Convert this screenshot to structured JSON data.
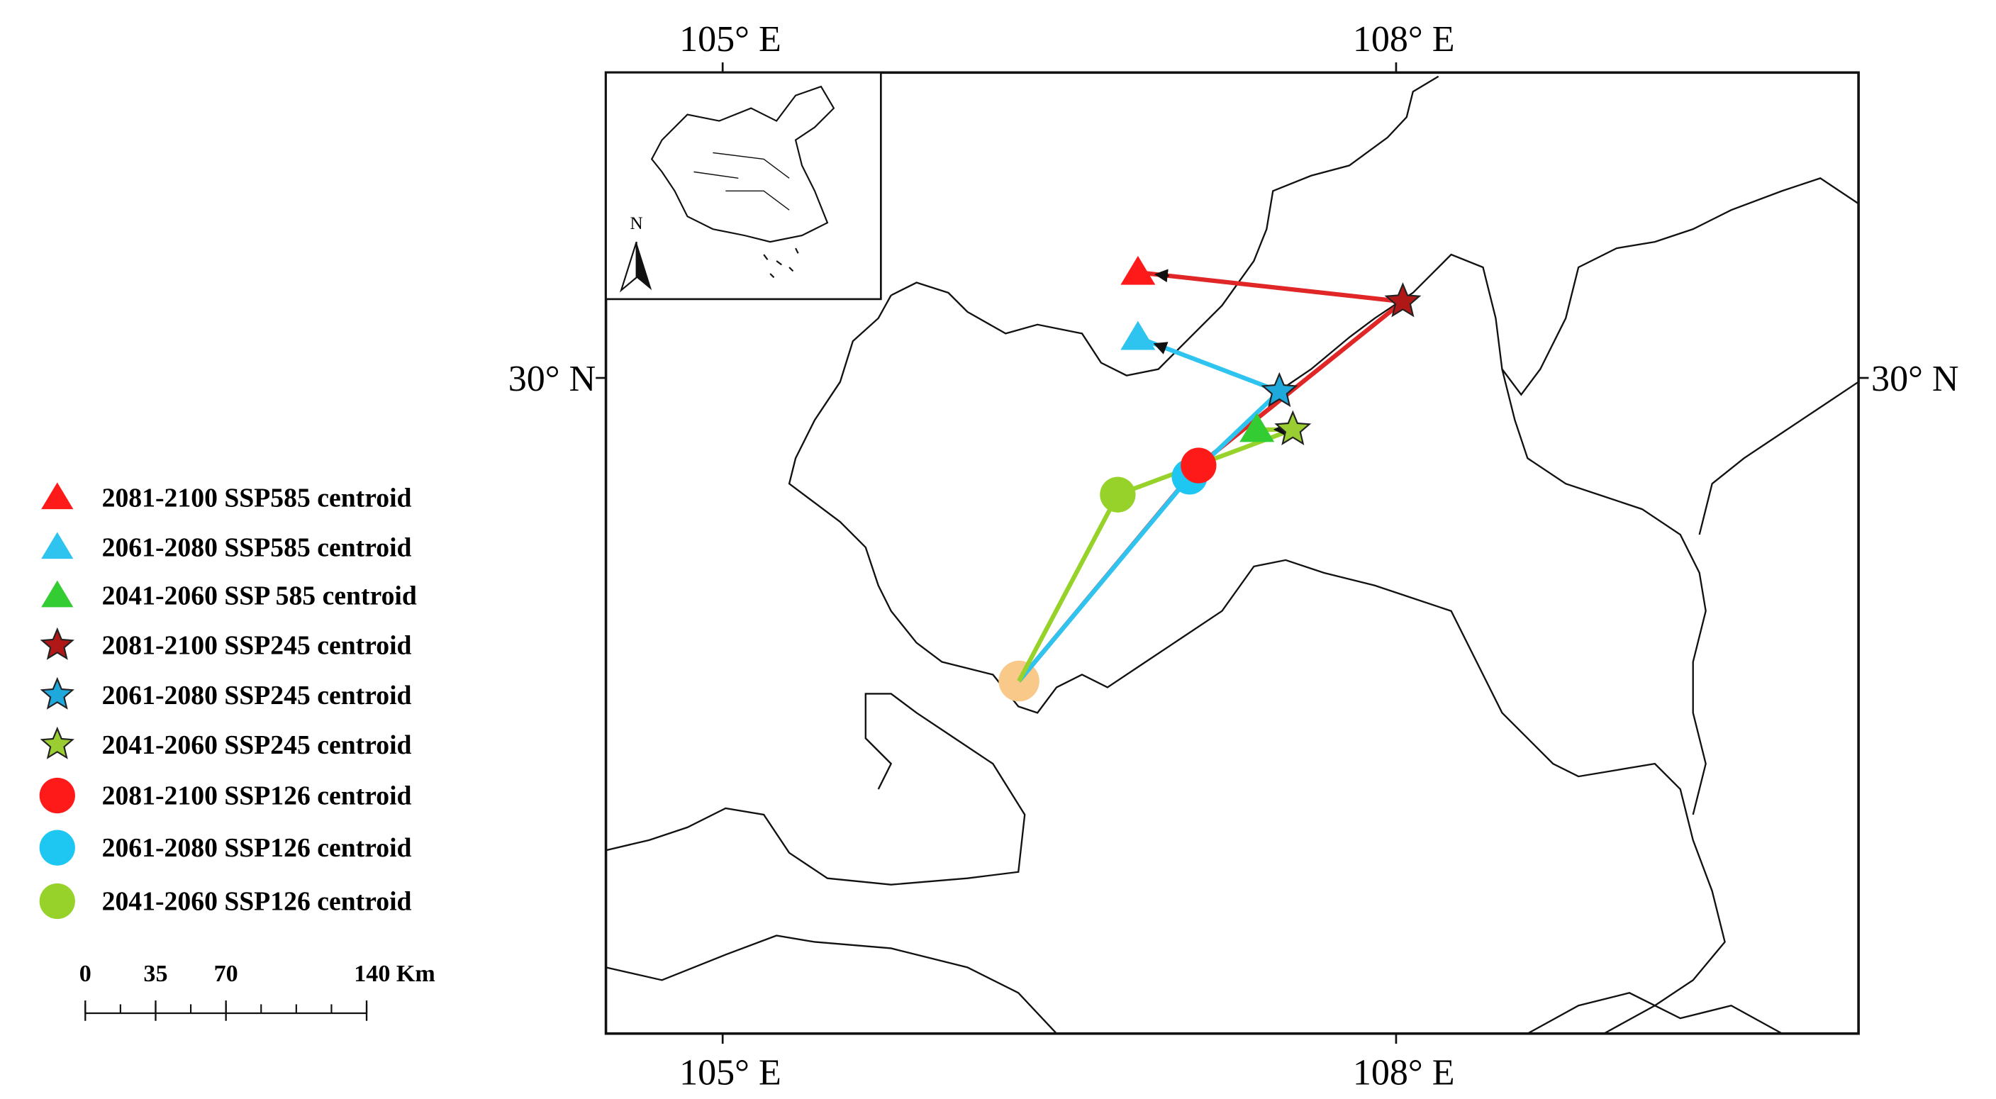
{
  "map": {
    "xlim": [
      104.48,
      110.06
    ],
    "ylim": [
      27.08,
      31.36
    ],
    "xticks": [
      {
        "value": 105,
        "label": "105° E"
      },
      {
        "value": 108,
        "label": "108° E"
      }
    ],
    "yticks": [
      {
        "value": 30,
        "label": "30° N"
      }
    ],
    "origin": {
      "lon": 106.32,
      "lat": 28.65,
      "color": "#f9c98a"
    },
    "centroids": [
      {
        "label": "2081-2100 SSP585 centroid",
        "shape": "triangle",
        "color": "#ff1a1a",
        "lon": 106.85,
        "lat": 30.47
      },
      {
        "label": "2061-2080 SSP585 centroid",
        "shape": "triangle",
        "color": "#2ec4ef",
        "lon": 106.85,
        "lat": 30.18
      },
      {
        "label": "2041-2060 SSP 585 centroid",
        "shape": "triangle",
        "color": "#33cc33",
        "lon": 107.38,
        "lat": 29.77
      },
      {
        "label": "2081-2100 SSP245 centroid",
        "shape": "star",
        "color": "#b01818",
        "lon": 108.03,
        "lat": 30.34
      },
      {
        "label": "2061-2080 SSP245 centroid",
        "shape": "star",
        "color": "#1fa8dc",
        "lon": 107.48,
        "lat": 29.94
      },
      {
        "label": "2041-2060 SSP245 centroid",
        "shape": "star",
        "color": "#9acd32",
        "lon": 107.54,
        "lat": 29.77
      },
      {
        "label": "2081-2100 SSP126 centroid",
        "shape": "circle",
        "color": "#ff1a1a",
        "lon": 107.12,
        "lat": 29.61
      },
      {
        "label": "2061-2080 SSP126 centroid",
        "shape": "circle",
        "color": "#1ec6f2",
        "lon": 107.08,
        "lat": 29.56
      },
      {
        "label": "2041-2060 SSP126 centroid",
        "shape": "circle",
        "color": "#97d22a",
        "lon": 106.76,
        "lat": 29.48
      }
    ],
    "line_colors": [
      "#e02626",
      "#2ec4ef",
      "#97d22a"
    ],
    "scale_bar": {
      "ticks": [
        0,
        35,
        70,
        {
          "value": 140,
          "label": "140 Km"
        }
      ]
    },
    "inset": {
      "north_label": "N"
    }
  }
}
